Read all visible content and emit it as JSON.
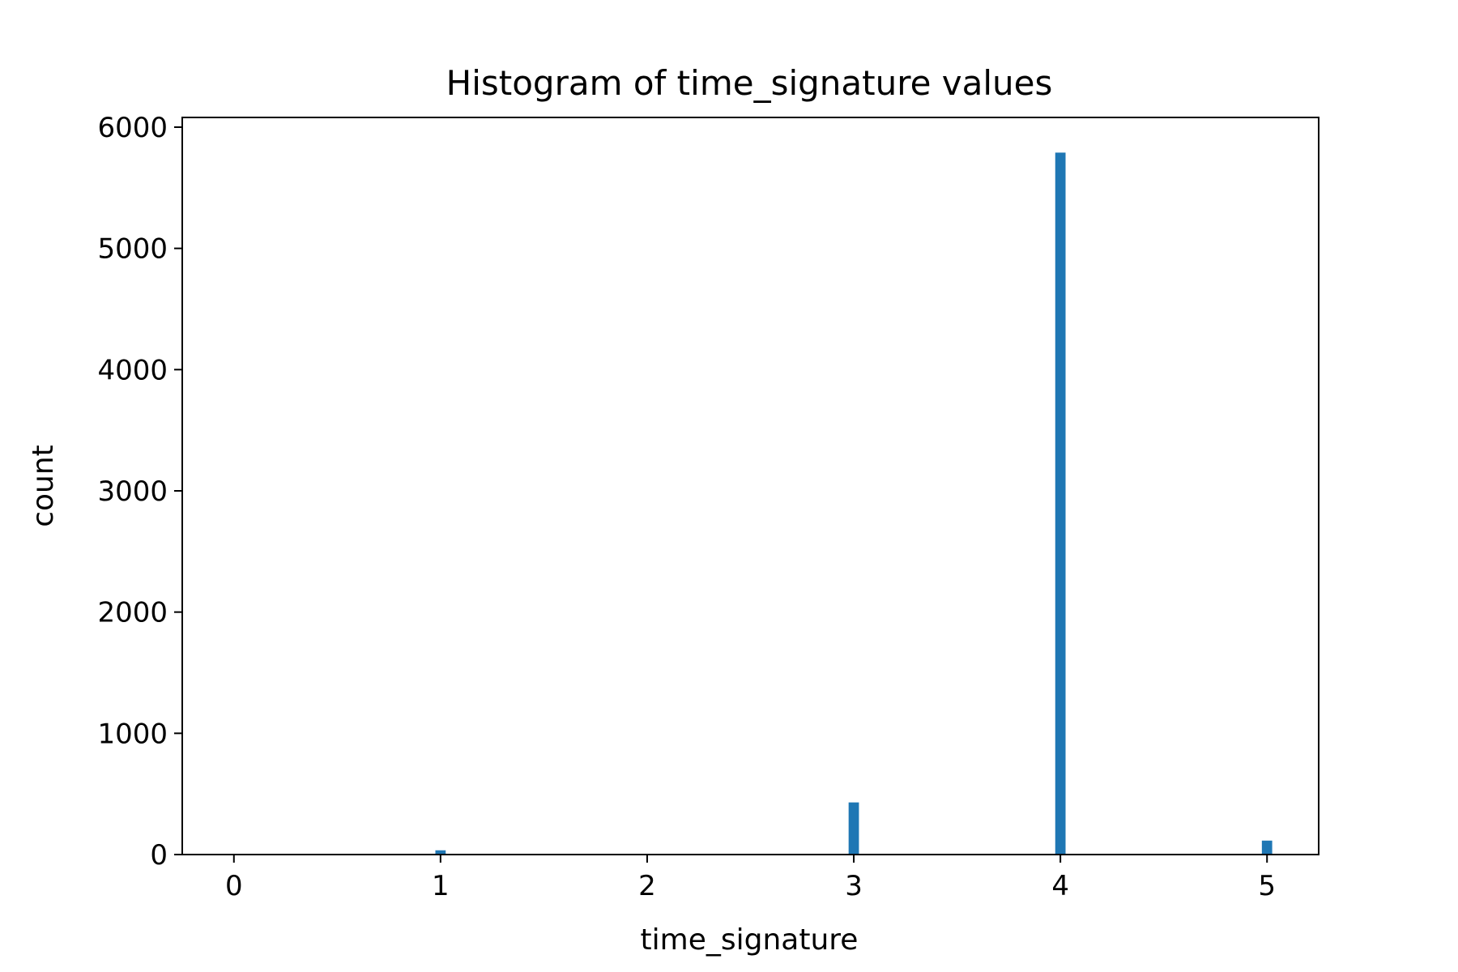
{
  "chart_data": {
    "type": "bar",
    "title": "Histogram of time_signature values",
    "xlabel": "time_signature",
    "ylabel": "count",
    "xlim": [
      -0.25,
      5.25
    ],
    "ylim": [
      0,
      6080
    ],
    "xticks": [
      0,
      1,
      2,
      3,
      4,
      5
    ],
    "yticks": [
      0,
      1000,
      2000,
      3000,
      4000,
      5000,
      6000
    ],
    "bar_width": 0.05,
    "bars": [
      {
        "x": 1,
        "count": 35
      },
      {
        "x": 3,
        "count": 430
      },
      {
        "x": 4,
        "count": 5790
      },
      {
        "x": 5,
        "count": 115
      }
    ],
    "bar_color": "#1f77b4",
    "grid": false,
    "legend": "none"
  }
}
